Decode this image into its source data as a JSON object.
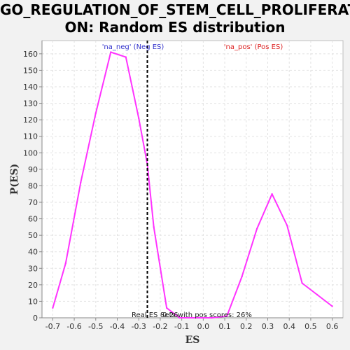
{
  "chart_data": {
    "type": "line",
    "title_line1": "GO_REGULATION_OF_STEM_CELL_PROLIFERATI",
    "title_line2": "ON: Random ES distribution",
    "xlabel": "ES",
    "ylabel": "P(ES)",
    "xlim": [
      -0.75,
      0.65
    ],
    "ylim": [
      0,
      168
    ],
    "x_ticks": [
      -0.7,
      -0.6,
      -0.5,
      -0.4,
      -0.3,
      -0.2,
      -0.1,
      0.0,
      0.1,
      0.2,
      0.3,
      0.4,
      0.5,
      0.6
    ],
    "x_tick_labels": [
      "-0.7",
      "-0.6",
      "-0.5",
      "-0.4",
      "-0.3",
      "-0.2",
      "-0.1",
      "0.0",
      "0.1",
      "0.2",
      "0.3",
      "0.4",
      "0.5",
      "0.6"
    ],
    "y_ticks": [
      0,
      10,
      20,
      30,
      40,
      50,
      60,
      70,
      80,
      90,
      100,
      110,
      120,
      130,
      140,
      150,
      160
    ],
    "grid": true,
    "series": [
      {
        "color": "#ff33ff",
        "x": [
          -0.7,
          -0.64,
          -0.57,
          -0.5,
          -0.43,
          -0.36,
          -0.3,
          -0.26,
          -0.23,
          -0.17,
          -0.11,
          -0.04,
          0.04,
          0.11,
          0.18,
          0.25,
          0.32,
          0.39,
          0.46,
          0.53,
          0.6
        ],
        "y": [
          6,
          33,
          82,
          124,
          161,
          158,
          121,
          93,
          55,
          6,
          0,
          0,
          0,
          1,
          25,
          54,
          75,
          56,
          21,
          14,
          7
        ]
      }
    ],
    "real_es_line": {
      "x": -0.26,
      "color": "#000000"
    },
    "annotations": {
      "neg_label": "'na_neg' (Neg ES)",
      "neg_color": "#3333cc",
      "pos_label": "'na_pos' (Pos ES)",
      "pos_color": "#dd2222",
      "bottom_text": "Real ES -0.26",
      "bottom_text2": "Sets with pos scores: 26%"
    }
  }
}
